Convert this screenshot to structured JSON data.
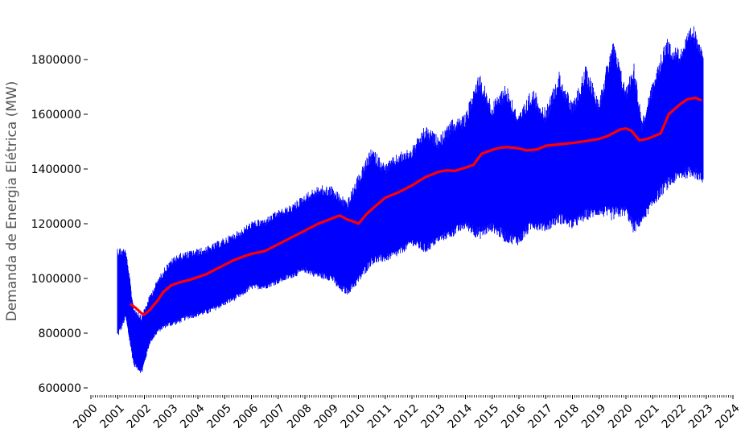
{
  "chart_data": {
    "type": "line",
    "title": "",
    "xlabel": "",
    "ylabel": "Demanda de Energia Elétrica (MW)",
    "xlim": [
      2000,
      2024
    ],
    "ylim": [
      580000,
      1950000
    ],
    "grid": false,
    "legend": "none",
    "x_ticks": [
      "2000",
      "2001",
      "2002",
      "2003",
      "2004",
      "2005",
      "2006",
      "2007",
      "2008",
      "2009",
      "2010",
      "2011",
      "2012",
      "2013",
      "2014",
      "2015",
      "2016",
      "2017",
      "2018",
      "2019",
      "2020",
      "2021",
      "2022",
      "2023",
      "2024"
    ],
    "y_ticks": [
      600000,
      800000,
      1000000,
      1200000,
      1400000,
      1600000,
      1800000
    ],
    "series": [
      {
        "color": "#0000ff",
        "style": "daily demand band (min-max envelope)",
        "x": [
          2001.0,
          2001.3,
          2001.6,
          2001.9,
          2002.2,
          2002.5,
          2002.8,
          2003.2,
          2003.6,
          2004.0,
          2004.4,
          2004.8,
          2005.2,
          2005.6,
          2006.0,
          2006.5,
          2007.0,
          2007.5,
          2008.0,
          2008.5,
          2009.0,
          2009.3,
          2009.6,
          2010.0,
          2010.5,
          2011.0,
          2011.5,
          2012.0,
          2012.5,
          2013.0,
          2013.5,
          2014.0,
          2014.5,
          2015.0,
          2015.5,
          2016.0,
          2016.5,
          2017.0,
          2017.5,
          2018.0,
          2018.5,
          2019.0,
          2019.5,
          2020.0,
          2020.3,
          2020.6,
          2021.0,
          2021.5,
          2022.0,
          2022.5,
          2022.9
        ],
        "upper": [
          1120000,
          1110000,
          900000,
          870000,
          940000,
          1000000,
          1050000,
          1090000,
          1100000,
          1110000,
          1120000,
          1140000,
          1160000,
          1180000,
          1210000,
          1220000,
          1250000,
          1270000,
          1310000,
          1340000,
          1340000,
          1310000,
          1290000,
          1380000,
          1480000,
          1420000,
          1460000,
          1480000,
          1560000,
          1520000,
          1580000,
          1600000,
          1760000,
          1640000,
          1720000,
          1600000,
          1700000,
          1620000,
          1760000,
          1640000,
          1780000,
          1660000,
          1880000,
          1700000,
          1800000,
          1580000,
          1720000,
          1880000,
          1840000,
          1930000,
          1850000
        ],
        "lower": [
          780000,
          850000,
          680000,
          650000,
          760000,
          800000,
          820000,
          830000,
          850000,
          860000,
          870000,
          890000,
          910000,
          930000,
          960000,
          960000,
          980000,
          1000000,
          1020000,
          1000000,
          990000,
          950000,
          940000,
          980000,
          1050000,
          1060000,
          1080000,
          1120000,
          1090000,
          1130000,
          1150000,
          1180000,
          1140000,
          1170000,
          1130000,
          1120000,
          1180000,
          1170000,
          1200000,
          1180000,
          1210000,
          1230000,
          1210000,
          1230000,
          1160000,
          1200000,
          1260000,
          1320000,
          1360000,
          1370000,
          1340000
        ]
      },
      {
        "color": "#ff0000",
        "style": "moving average",
        "x": [
          2001.5,
          2001.7,
          2001.9,
          2002.0,
          2002.2,
          2002.5,
          2002.7,
          2003.0,
          2003.3,
          2003.7,
          2004.0,
          2004.3,
          2004.6,
          2005.0,
          2005.3,
          2005.7,
          2006.0,
          2006.5,
          2007.0,
          2007.5,
          2008.0,
          2008.5,
          2008.9,
          2009.3,
          2009.6,
          2009.9,
          2010.0,
          2010.3,
          2010.7,
          2011.0,
          2011.5,
          2012.0,
          2012.5,
          2013.0,
          2013.3,
          2013.6,
          2014.0,
          2014.3,
          2014.6,
          2015.0,
          2015.3,
          2015.6,
          2016.0,
          2016.3,
          2016.7,
          2017.0,
          2017.5,
          2018.0,
          2018.5,
          2019.0,
          2019.3,
          2019.6,
          2019.8,
          2020.0,
          2020.2,
          2020.5,
          2020.8,
          2021.0,
          2021.3,
          2021.6,
          2022.0,
          2022.3,
          2022.6,
          2022.8
        ],
        "values": [
          905000,
          890000,
          872000,
          868000,
          885000,
          920000,
          950000,
          975000,
          985000,
          995000,
          1005000,
          1015000,
          1030000,
          1050000,
          1065000,
          1080000,
          1090000,
          1100000,
          1125000,
          1150000,
          1175000,
          1200000,
          1215000,
          1230000,
          1215000,
          1205000,
          1200000,
          1235000,
          1270000,
          1295000,
          1315000,
          1340000,
          1370000,
          1390000,
          1395000,
          1393000,
          1405000,
          1415000,
          1455000,
          1470000,
          1478000,
          1480000,
          1475000,
          1468000,
          1472000,
          1485000,
          1490000,
          1495000,
          1502000,
          1510000,
          1520000,
          1535000,
          1545000,
          1548000,
          1540000,
          1505000,
          1510000,
          1518000,
          1530000,
          1600000,
          1635000,
          1655000,
          1660000,
          1652000
        ]
      }
    ]
  }
}
